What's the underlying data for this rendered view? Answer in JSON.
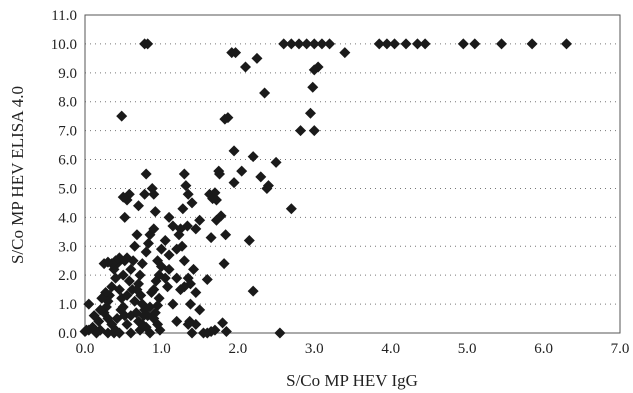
{
  "chart_data": {
    "type": "scatter",
    "title": "",
    "xlabel": "S/Co MP HEV IgG",
    "ylabel": "S/Co MP HEV ELISA 4.0",
    "xlim": [
      0,
      7
    ],
    "ylim": [
      0,
      11
    ],
    "x_ticks": [
      "0.0",
      "1.0",
      "2.0",
      "3.0",
      "4.0",
      "5.0",
      "6.0",
      "7.0"
    ],
    "y_ticks": [
      "0.0",
      "1.0",
      "2.0",
      "3.0",
      "4.0",
      "5.0",
      "6.0",
      "7.0",
      "8.0",
      "9.0",
      "10.0",
      "11.0"
    ],
    "grid": "horizontal dotted",
    "marker": "diamond",
    "marker_color": "#1a1a1a",
    "points": [
      [
        0.78,
        10.0
      ],
      [
        0.82,
        10.0
      ],
      [
        1.92,
        9.7
      ],
      [
        1.97,
        9.7
      ],
      [
        2.6,
        10.0
      ],
      [
        2.7,
        10.0
      ],
      [
        2.8,
        10.0
      ],
      [
        2.9,
        10.0
      ],
      [
        3.0,
        10.0
      ],
      [
        3.1,
        10.0
      ],
      [
        3.2,
        10.0
      ],
      [
        3.85,
        10.0
      ],
      [
        3.95,
        10.0
      ],
      [
        4.05,
        10.0
      ],
      [
        4.2,
        10.0
      ],
      [
        4.35,
        10.0
      ],
      [
        4.45,
        10.0
      ],
      [
        4.95,
        10.0
      ],
      [
        5.1,
        10.0
      ],
      [
        5.45,
        10.0
      ],
      [
        5.85,
        10.0
      ],
      [
        6.3,
        10.0
      ],
      [
        2.25,
        9.5
      ],
      [
        2.1,
        9.2
      ],
      [
        3.05,
        9.2
      ],
      [
        3.0,
        9.1
      ],
      [
        3.4,
        9.7
      ],
      [
        2.35,
        8.3
      ],
      [
        2.98,
        8.5
      ],
      [
        2.95,
        7.6
      ],
      [
        2.82,
        7.0
      ],
      [
        3.0,
        7.0
      ],
      [
        0.48,
        7.5
      ],
      [
        1.83,
        7.4
      ],
      [
        1.87,
        7.45
      ],
      [
        1.95,
        6.3
      ],
      [
        2.2,
        6.1
      ],
      [
        2.05,
        5.6
      ],
      [
        1.95,
        5.2
      ],
      [
        2.5,
        5.9
      ],
      [
        2.3,
        5.4
      ],
      [
        2.4,
        5.1
      ],
      [
        2.38,
        5.0
      ],
      [
        2.7,
        4.3
      ],
      [
        2.15,
        3.2
      ],
      [
        2.2,
        1.45
      ],
      [
        2.55,
        0.0
      ],
      [
        1.8,
        0.35
      ],
      [
        1.85,
        0.05
      ],
      [
        1.7,
        0.1
      ],
      [
        1.45,
        0.3
      ],
      [
        1.4,
        0.0
      ],
      [
        1.6,
        0.0
      ],
      [
        1.65,
        0.05
      ],
      [
        1.55,
        0.0
      ],
      [
        1.2,
        0.4
      ],
      [
        1.35,
        0.3
      ],
      [
        1.5,
        0.8
      ],
      [
        1.6,
        1.85
      ],
      [
        1.82,
        2.4
      ],
      [
        1.72,
        3.9
      ],
      [
        1.78,
        4.05
      ],
      [
        1.84,
        3.4
      ],
      [
        1.65,
        3.3
      ],
      [
        1.63,
        4.8
      ],
      [
        1.7,
        4.85
      ],
      [
        1.72,
        4.6
      ],
      [
        1.67,
        4.65
      ],
      [
        1.75,
        5.6
      ],
      [
        1.76,
        5.5
      ],
      [
        1.5,
        3.9
      ],
      [
        1.45,
        3.6
      ],
      [
        1.35,
        4.8
      ],
      [
        1.4,
        4.5
      ],
      [
        1.28,
        4.3
      ],
      [
        1.3,
        5.5
      ],
      [
        1.32,
        5.1
      ],
      [
        1.34,
        3.7
      ],
      [
        1.25,
        3.6
      ],
      [
        1.2,
        2.9
      ],
      [
        1.3,
        2.5
      ],
      [
        1.35,
        1.9
      ],
      [
        1.38,
        1.7
      ],
      [
        1.42,
        2.2
      ],
      [
        1.3,
        1.6
      ],
      [
        1.25,
        1.5
      ],
      [
        1.45,
        1.4
      ],
      [
        1.37,
        0.4
      ],
      [
        1.27,
        3.0
      ],
      [
        1.23,
        3.4
      ],
      [
        1.1,
        4.0
      ],
      [
        1.15,
        3.7
      ],
      [
        1.05,
        3.2
      ],
      [
        1.0,
        2.9
      ],
      [
        1.1,
        2.7
      ],
      [
        0.95,
        2.5
      ],
      [
        1.0,
        2.3
      ],
      [
        1.05,
        1.9
      ],
      [
        1.08,
        1.6
      ],
      [
        0.9,
        1.5
      ],
      [
        0.93,
        1.8
      ],
      [
        0.97,
        1.2
      ],
      [
        0.95,
        0.95
      ],
      [
        0.92,
        0.7
      ],
      [
        0.9,
        0.5
      ],
      [
        0.95,
        0.3
      ],
      [
        0.98,
        0.1
      ],
      [
        0.85,
        0.0
      ],
      [
        0.8,
        0.2
      ],
      [
        0.82,
        0.6
      ],
      [
        0.78,
        0.8
      ],
      [
        0.75,
        1.0
      ],
      [
        0.73,
        1.3
      ],
      [
        0.7,
        1.7
      ],
      [
        0.72,
        2.0
      ],
      [
        0.75,
        2.4
      ],
      [
        0.8,
        2.8
      ],
      [
        0.83,
        3.1
      ],
      [
        0.85,
        3.4
      ],
      [
        0.9,
        3.6
      ],
      [
        0.92,
        4.2
      ],
      [
        0.9,
        4.8
      ],
      [
        0.88,
        5.0
      ],
      [
        0.8,
        5.5
      ],
      [
        0.78,
        4.8
      ],
      [
        0.7,
        4.4
      ],
      [
        0.68,
        3.4
      ],
      [
        0.65,
        3.0
      ],
      [
        0.63,
        2.5
      ],
      [
        0.6,
        2.2
      ],
      [
        0.58,
        1.8
      ],
      [
        0.62,
        1.5
      ],
      [
        0.65,
        1.1
      ],
      [
        0.67,
        0.7
      ],
      [
        0.7,
        0.4
      ],
      [
        0.72,
        0.1
      ],
      [
        0.6,
        0.0
      ],
      [
        0.55,
        0.3
      ],
      [
        0.52,
        0.6
      ],
      [
        0.5,
        0.9
      ],
      [
        0.48,
        1.2
      ],
      [
        0.45,
        1.5
      ],
      [
        0.5,
        2.0
      ],
      [
        0.52,
        2.5
      ],
      [
        0.55,
        2.6
      ],
      [
        0.58,
        4.8
      ],
      [
        0.55,
        4.6
      ],
      [
        0.52,
        4.0
      ],
      [
        0.5,
        4.7
      ],
      [
        0.45,
        2.6
      ],
      [
        0.42,
        2.4
      ],
      [
        0.4,
        2.5
      ],
      [
        0.38,
        2.2
      ],
      [
        0.35,
        2.4
      ],
      [
        0.3,
        2.45
      ],
      [
        0.25,
        2.4
      ],
      [
        0.4,
        1.9
      ],
      [
        0.35,
        1.6
      ],
      [
        0.32,
        1.3
      ],
      [
        0.3,
        1.1
      ],
      [
        0.28,
        0.9
      ],
      [
        0.27,
        1.4
      ],
      [
        0.25,
        0.7
      ],
      [
        0.3,
        0.5
      ],
      [
        0.35,
        0.3
      ],
      [
        0.4,
        0.1
      ],
      [
        0.38,
        0.0
      ],
      [
        0.45,
        0.0
      ],
      [
        0.3,
        0.0
      ],
      [
        0.2,
        0.1
      ],
      [
        0.18,
        0.4
      ],
      [
        0.15,
        0.0
      ],
      [
        0.1,
        0.2
      ],
      [
        0.12,
        0.6
      ],
      [
        0.05,
        0.1
      ],
      [
        0.02,
        0.1
      ],
      [
        0.0,
        0.05
      ],
      [
        0.05,
        1.0
      ],
      [
        0.2,
        0.8
      ],
      [
        0.22,
        1.2
      ],
      [
        0.42,
        0.5
      ],
      [
        0.47,
        0.8
      ],
      [
        0.55,
        1.3
      ],
      [
        0.6,
        0.6
      ],
      [
        0.68,
        1.5
      ],
      [
        0.75,
        0.3
      ],
      [
        0.77,
        0.6
      ],
      [
        0.85,
        0.9
      ],
      [
        0.87,
        1.4
      ],
      [
        0.97,
        2.0
      ],
      [
        1.1,
        2.2
      ],
      [
        1.15,
        1.0
      ],
      [
        1.2,
        1.9
      ],
      [
        1.38,
        1.0
      ]
    ]
  }
}
